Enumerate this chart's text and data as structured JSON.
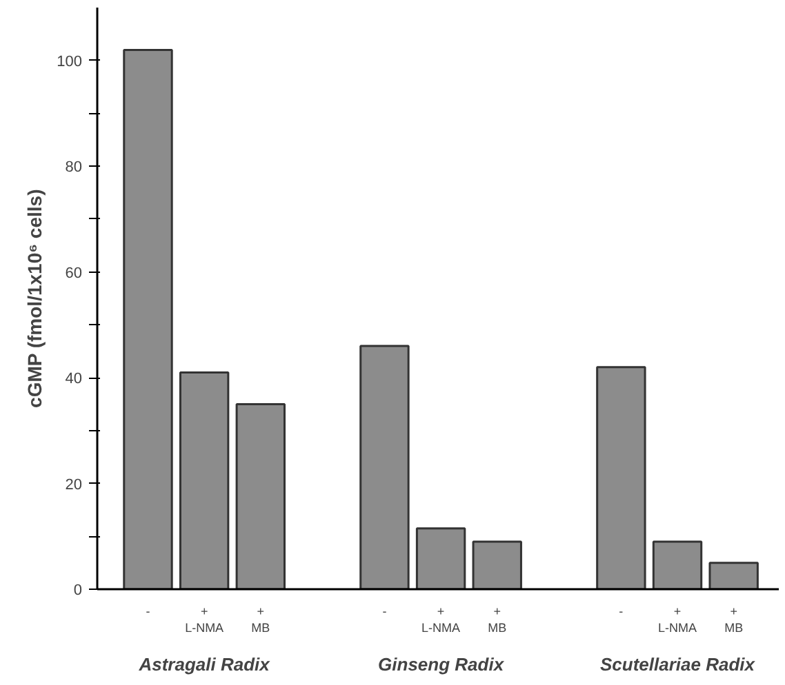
{
  "chart_data": {
    "type": "bar",
    "ylabel": "cGMP (fmol/1x10⁶ cells)",
    "categories": [
      "-",
      "+\nL-NMA",
      "+\nMB",
      "-",
      "+\nL-NMA",
      "+\nMB",
      "-",
      "+\nL-NMA",
      "+\nMB"
    ],
    "values": [
      102,
      41,
      35,
      46,
      11.5,
      9,
      42,
      9,
      5
    ],
    "color": "#8c8c8c",
    "ylim": [
      0,
      110
    ],
    "yticks": [
      0,
      {
        "value": 10,
        "label": null
      },
      20,
      {
        "value": 30,
        "label": null
      },
      40,
      {
        "value": 50,
        "label": null
      },
      60,
      {
        "value": 70,
        "label": null
      },
      80,
      {
        "value": 90,
        "label": null
      },
      100
    ],
    "annotations": [
      "Astragali Radix",
      "Ginseng Radix",
      "Scutellariae Radix"
    ],
    "grid": false
  }
}
